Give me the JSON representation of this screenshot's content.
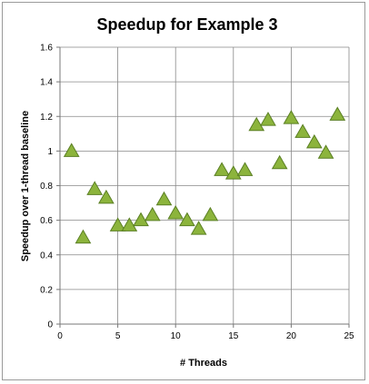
{
  "chart_data": {
    "type": "scatter",
    "title": "Speedup for Example 3",
    "xlabel": "# Threads",
    "ylabel": "Speedup over 1-thread baseline",
    "xlim": [
      0,
      25
    ],
    "ylim": [
      0,
      1.6
    ],
    "xticks": [
      0,
      5,
      10,
      15,
      20,
      25
    ],
    "yticks": [
      0,
      0.2,
      0.4,
      0.6,
      0.8,
      1,
      1.2,
      1.4,
      1.6
    ],
    "xtick_labels": [
      "0",
      "5",
      "10",
      "15",
      "20",
      "25"
    ],
    "ytick_labels": [
      "0",
      "0.2",
      "0.4",
      "0.6",
      "0.8",
      "1",
      "1.2",
      "1.4",
      "1.6"
    ],
    "grid": true,
    "marker": "triangle",
    "marker_color": "#8cb43c",
    "marker_edge_color": "#5a7f23",
    "grid_color": "#888888",
    "x": [
      1,
      2,
      3,
      4,
      5,
      6,
      7,
      8,
      9,
      10,
      11,
      12,
      13,
      14,
      15,
      16,
      17,
      18,
      19,
      20,
      21,
      22,
      23,
      24
    ],
    "y": [
      1.0,
      0.5,
      0.78,
      0.73,
      0.57,
      0.57,
      0.6,
      0.63,
      0.72,
      0.64,
      0.6,
      0.55,
      0.63,
      0.89,
      0.87,
      0.89,
      1.15,
      1.18,
      0.93,
      1.19,
      1.11,
      1.05,
      0.99,
      1.21
    ]
  }
}
